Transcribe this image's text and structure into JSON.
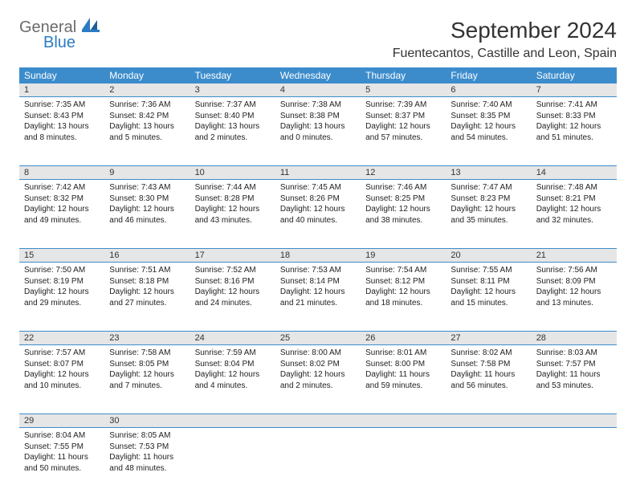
{
  "logo": {
    "general": "General",
    "blue": "Blue"
  },
  "title": "September 2024",
  "location": "Fuentecantos, Castille and Leon, Spain",
  "colors": {
    "header_bg": "#3c8ccc",
    "header_fg": "#ffffff",
    "daynum_bg": "#e6e6e6",
    "rule": "#3c8ccc",
    "logo_gray": "#6b6b6b",
    "logo_blue": "#2b7cc4"
  },
  "weekdays": [
    "Sunday",
    "Monday",
    "Tuesday",
    "Wednesday",
    "Thursday",
    "Friday",
    "Saturday"
  ],
  "weeks": [
    [
      {
        "n": "1",
        "sr": "7:35 AM",
        "ss": "8:43 PM",
        "dl": "13 hours and 8 minutes."
      },
      {
        "n": "2",
        "sr": "7:36 AM",
        "ss": "8:42 PM",
        "dl": "13 hours and 5 minutes."
      },
      {
        "n": "3",
        "sr": "7:37 AM",
        "ss": "8:40 PM",
        "dl": "13 hours and 2 minutes."
      },
      {
        "n": "4",
        "sr": "7:38 AM",
        "ss": "8:38 PM",
        "dl": "13 hours and 0 minutes."
      },
      {
        "n": "5",
        "sr": "7:39 AM",
        "ss": "8:37 PM",
        "dl": "12 hours and 57 minutes."
      },
      {
        "n": "6",
        "sr": "7:40 AM",
        "ss": "8:35 PM",
        "dl": "12 hours and 54 minutes."
      },
      {
        "n": "7",
        "sr": "7:41 AM",
        "ss": "8:33 PM",
        "dl": "12 hours and 51 minutes."
      }
    ],
    [
      {
        "n": "8",
        "sr": "7:42 AM",
        "ss": "8:32 PM",
        "dl": "12 hours and 49 minutes."
      },
      {
        "n": "9",
        "sr": "7:43 AM",
        "ss": "8:30 PM",
        "dl": "12 hours and 46 minutes."
      },
      {
        "n": "10",
        "sr": "7:44 AM",
        "ss": "8:28 PM",
        "dl": "12 hours and 43 minutes."
      },
      {
        "n": "11",
        "sr": "7:45 AM",
        "ss": "8:26 PM",
        "dl": "12 hours and 40 minutes."
      },
      {
        "n": "12",
        "sr": "7:46 AM",
        "ss": "8:25 PM",
        "dl": "12 hours and 38 minutes."
      },
      {
        "n": "13",
        "sr": "7:47 AM",
        "ss": "8:23 PM",
        "dl": "12 hours and 35 minutes."
      },
      {
        "n": "14",
        "sr": "7:48 AM",
        "ss": "8:21 PM",
        "dl": "12 hours and 32 minutes."
      }
    ],
    [
      {
        "n": "15",
        "sr": "7:50 AM",
        "ss": "8:19 PM",
        "dl": "12 hours and 29 minutes."
      },
      {
        "n": "16",
        "sr": "7:51 AM",
        "ss": "8:18 PM",
        "dl": "12 hours and 27 minutes."
      },
      {
        "n": "17",
        "sr": "7:52 AM",
        "ss": "8:16 PM",
        "dl": "12 hours and 24 minutes."
      },
      {
        "n": "18",
        "sr": "7:53 AM",
        "ss": "8:14 PM",
        "dl": "12 hours and 21 minutes."
      },
      {
        "n": "19",
        "sr": "7:54 AM",
        "ss": "8:12 PM",
        "dl": "12 hours and 18 minutes."
      },
      {
        "n": "20",
        "sr": "7:55 AM",
        "ss": "8:11 PM",
        "dl": "12 hours and 15 minutes."
      },
      {
        "n": "21",
        "sr": "7:56 AM",
        "ss": "8:09 PM",
        "dl": "12 hours and 13 minutes."
      }
    ],
    [
      {
        "n": "22",
        "sr": "7:57 AM",
        "ss": "8:07 PM",
        "dl": "12 hours and 10 minutes."
      },
      {
        "n": "23",
        "sr": "7:58 AM",
        "ss": "8:05 PM",
        "dl": "12 hours and 7 minutes."
      },
      {
        "n": "24",
        "sr": "7:59 AM",
        "ss": "8:04 PM",
        "dl": "12 hours and 4 minutes."
      },
      {
        "n": "25",
        "sr": "8:00 AM",
        "ss": "8:02 PM",
        "dl": "12 hours and 2 minutes."
      },
      {
        "n": "26",
        "sr": "8:01 AM",
        "ss": "8:00 PM",
        "dl": "11 hours and 59 minutes."
      },
      {
        "n": "27",
        "sr": "8:02 AM",
        "ss": "7:58 PM",
        "dl": "11 hours and 56 minutes."
      },
      {
        "n": "28",
        "sr": "8:03 AM",
        "ss": "7:57 PM",
        "dl": "11 hours and 53 minutes."
      }
    ],
    [
      {
        "n": "29",
        "sr": "8:04 AM",
        "ss": "7:55 PM",
        "dl": "11 hours and 50 minutes."
      },
      {
        "n": "30",
        "sr": "8:05 AM",
        "ss": "7:53 PM",
        "dl": "11 hours and 48 minutes."
      },
      null,
      null,
      null,
      null,
      null
    ]
  ],
  "labels": {
    "sunrise": "Sunrise:",
    "sunset": "Sunset:",
    "daylight": "Daylight:"
  }
}
